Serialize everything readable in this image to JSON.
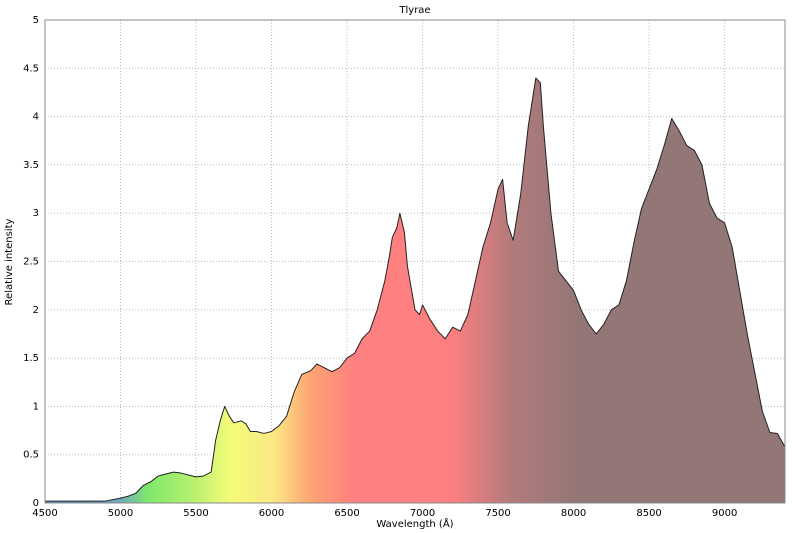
{
  "chart_data": {
    "type": "area",
    "title": "Tlyrae",
    "x_label": "Wavelength (Å)",
    "y_label": "Relative intensity",
    "x": [
      4500,
      4600,
      4700,
      4800,
      4900,
      5000,
      5050,
      5100,
      5150,
      5200,
      5250,
      5300,
      5350,
      5400,
      5450,
      5500,
      5550,
      5600,
      5630,
      5660,
      5690,
      5720,
      5750,
      5800,
      5830,
      5860,
      5900,
      5950,
      6000,
      6050,
      6100,
      6150,
      6200,
      6230,
      6260,
      6300,
      6350,
      6400,
      6450,
      6500,
      6550,
      6600,
      6650,
      6700,
      6750,
      6780,
      6800,
      6830,
      6850,
      6880,
      6900,
      6950,
      6980,
      7000,
      7050,
      7100,
      7150,
      7200,
      7250,
      7300,
      7350,
      7400,
      7450,
      7500,
      7530,
      7560,
      7600,
      7650,
      7700,
      7750,
      7780,
      7800,
      7850,
      7900,
      7950,
      8000,
      8050,
      8100,
      8150,
      8200,
      8250,
      8300,
      8350,
      8400,
      8450,
      8500,
      8550,
      8600,
      8650,
      8700,
      8750,
      8800,
      8850,
      8900,
      8950,
      9000,
      9050,
      9100,
      9150,
      9200,
      9250,
      9300,
      9350,
      9400
    ],
    "values": [
      0.02,
      0.02,
      0.02,
      0.02,
      0.02,
      0.05,
      0.07,
      0.1,
      0.18,
      0.22,
      0.28,
      0.3,
      0.32,
      0.31,
      0.29,
      0.27,
      0.28,
      0.32,
      0.65,
      0.85,
      1.0,
      0.9,
      0.83,
      0.85,
      0.82,
      0.74,
      0.74,
      0.72,
      0.74,
      0.8,
      0.9,
      1.15,
      1.33,
      1.35,
      1.37,
      1.44,
      1.4,
      1.36,
      1.4,
      1.5,
      1.55,
      1.7,
      1.78,
      2.0,
      2.3,
      2.55,
      2.75,
      2.85,
      3.0,
      2.8,
      2.45,
      2.0,
      1.95,
      2.05,
      1.9,
      1.78,
      1.7,
      1.82,
      1.78,
      1.95,
      2.3,
      2.65,
      2.9,
      3.25,
      3.35,
      2.9,
      2.72,
      3.2,
      3.9,
      4.4,
      4.35,
      3.9,
      3.0,
      2.4,
      2.3,
      2.2,
      2.0,
      1.85,
      1.75,
      1.85,
      2.0,
      2.05,
      2.3,
      2.7,
      3.05,
      3.25,
      3.45,
      3.7,
      3.98,
      3.85,
      3.7,
      3.65,
      3.5,
      3.1,
      2.95,
      2.9,
      2.65,
      2.2,
      1.75,
      1.35,
      0.95,
      0.73,
      0.72,
      0.58
    ],
    "line_color": "#222222",
    "xlim": [
      4500,
      9400
    ],
    "xticks": [
      4500,
      5000,
      5500,
      6000,
      6500,
      7000,
      7500,
      8000,
      8500,
      9000
    ],
    "ylim": [
      0,
      5
    ],
    "yticks": [
      0,
      0.5,
      1,
      1.5,
      2,
      2.5,
      3,
      3.5,
      4,
      4.5,
      5
    ],
    "grid": true
  }
}
